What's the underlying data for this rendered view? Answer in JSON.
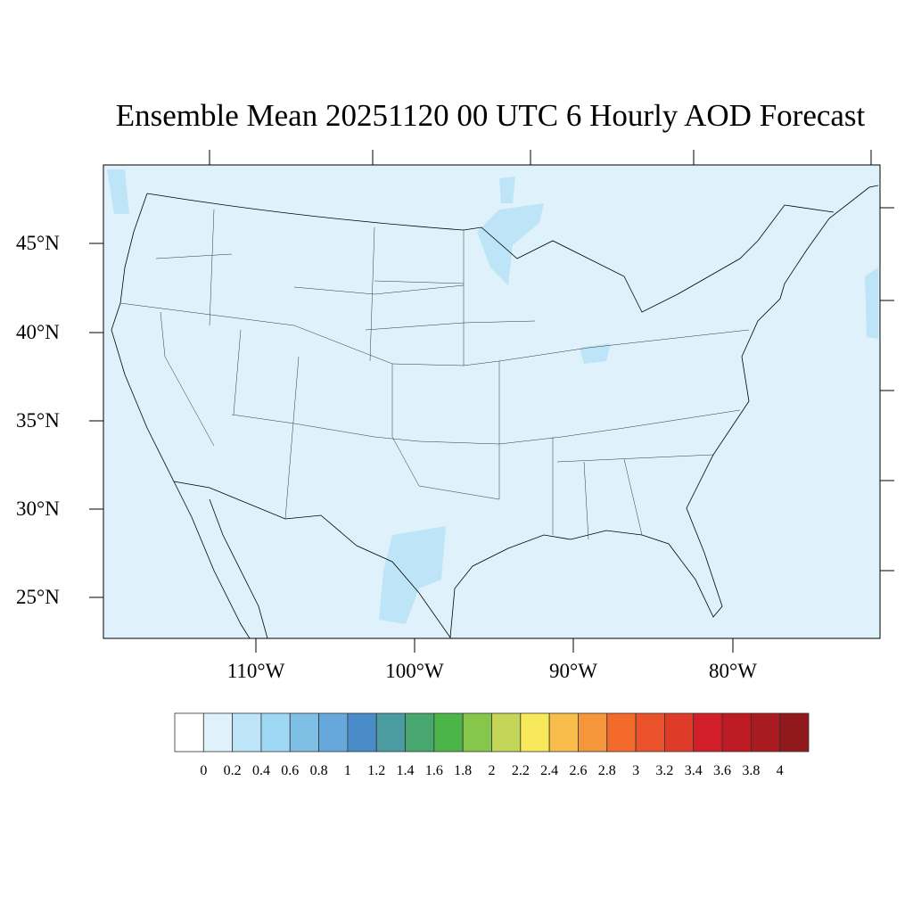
{
  "title": "Ensemble Mean 20251120 00 UTC 6 Hourly AOD Forecast",
  "map": {
    "region": "Continental United States",
    "background_color": "#dff2fb",
    "plume_color": "#bde5f7",
    "lat_labels": [
      "45°N",
      "40°N",
      "35°N",
      "30°N",
      "25°N"
    ],
    "lon_labels": [
      "110°W",
      "100°W",
      "90°W",
      "80°W"
    ]
  },
  "colorbar": {
    "colors": [
      "#ffffff",
      "#dff2fb",
      "#bde5f7",
      "#9fd8f4",
      "#80bfe5",
      "#66a8dc",
      "#4a8cc8",
      "#4a9ca0",
      "#48a66f",
      "#4bb549",
      "#86c64b",
      "#c4d657",
      "#f8e85c",
      "#f8bd4b",
      "#f6963c",
      "#f46a2b",
      "#e9522b",
      "#de3c28",
      "#d31f2a",
      "#bd1c24",
      "#a81b20",
      "#91181b"
    ],
    "labels": [
      "0",
      "0.2",
      "0.4",
      "0.6",
      "0.8",
      "1",
      "1.2",
      "1.4",
      "1.6",
      "1.8",
      "2",
      "2.2",
      "2.4",
      "2.6",
      "2.8",
      "3",
      "3.2",
      "3.4",
      "3.6",
      "3.8",
      "4"
    ]
  }
}
